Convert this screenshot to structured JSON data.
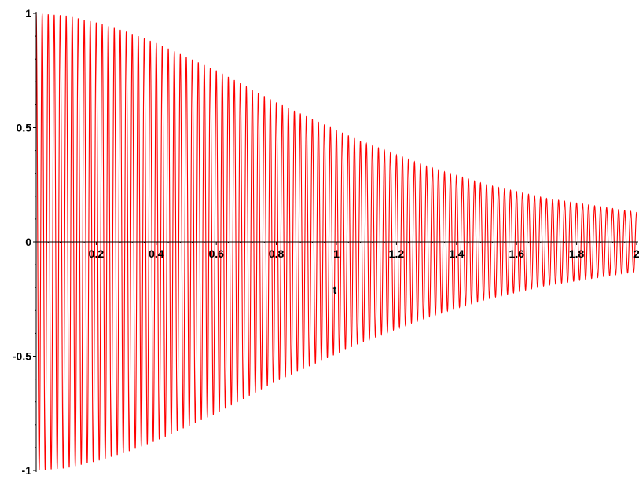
{
  "chart_data": {
    "type": "line",
    "xlabel": "t",
    "ylabel": "",
    "xlim": [
      0,
      2
    ],
    "ylim": [
      -1,
      1
    ],
    "grid": false,
    "x_ticks": [
      {
        "value": 0.2,
        "label": "0.2"
      },
      {
        "value": 0.4,
        "label": "0.4"
      },
      {
        "value": 0.6,
        "label": "0.6"
      },
      {
        "value": 0.8,
        "label": "0.8"
      },
      {
        "value": 1.0,
        "label": "1"
      },
      {
        "value": 1.2,
        "label": "1.2"
      },
      {
        "value": 1.4,
        "label": "1.4"
      },
      {
        "value": 1.6,
        "label": "1.6"
      },
      {
        "value": 1.8,
        "label": "1.8"
      },
      {
        "value": 2.0,
        "label": "2"
      }
    ],
    "y_ticks": [
      {
        "value": 1,
        "label": "1"
      },
      {
        "value": 0.5,
        "label": "0.5"
      },
      {
        "value": 0,
        "label": "0"
      },
      {
        "value": -0.5,
        "label": "-0.5"
      },
      {
        "value": -1,
        "label": "-1"
      }
    ],
    "series": [
      {
        "color": "#ff0000",
        "cycles": 100,
        "envelope": {
          "t": [
            0,
            0.1,
            0.2,
            0.3,
            0.4,
            0.5,
            0.6,
            0.7,
            0.8,
            0.9,
            1.0,
            1.1,
            1.2,
            1.3,
            1.4,
            1.5,
            1.6,
            1.7,
            1.8,
            1.9,
            2.0
          ],
          "amplitude": [
            1.0,
            0.99,
            0.96,
            0.92,
            0.87,
            0.81,
            0.75,
            0.68,
            0.61,
            0.55,
            0.49,
            0.43,
            0.38,
            0.33,
            0.29,
            0.25,
            0.22,
            0.19,
            0.17,
            0.15,
            0.13
          ]
        }
      }
    ]
  }
}
